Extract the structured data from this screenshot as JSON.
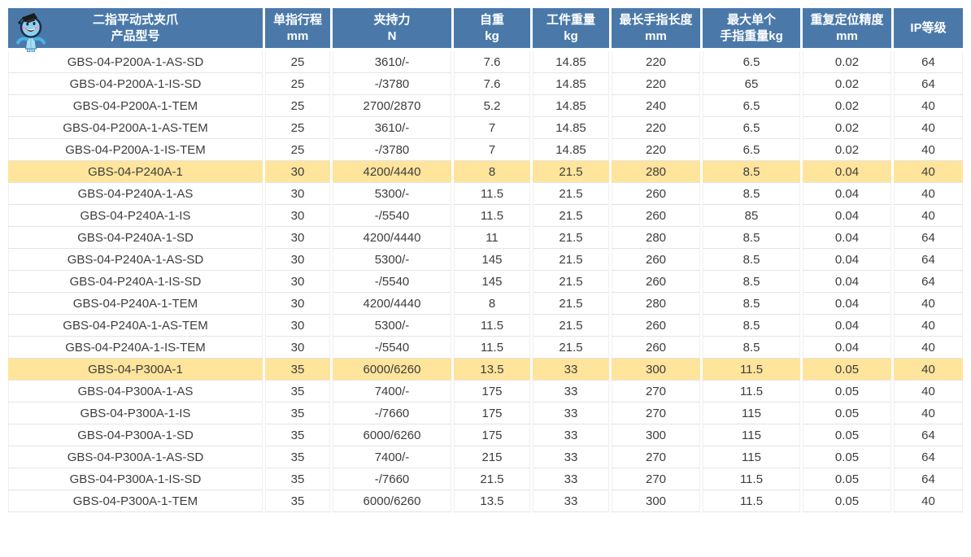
{
  "table": {
    "columns": [
      {
        "line1": "二指平动式夹爪",
        "line2": "产品型号"
      },
      {
        "line1": "单指行程",
        "line2": "mm"
      },
      {
        "line1": "夹持力",
        "line2": "N"
      },
      {
        "line1": "自重",
        "line2": "kg"
      },
      {
        "line1": "工件重量",
        "line2": "kg"
      },
      {
        "line1": "最长手指长度",
        "line2": "mm"
      },
      {
        "line1": "最大单个",
        "line2": "手指重量kg"
      },
      {
        "line1": "重复定位精度",
        "line2": "mm"
      },
      {
        "line1": "IP等级",
        "line2": ""
      }
    ],
    "rows": [
      {
        "highlighted": false,
        "cells": [
          "GBS-04-P200A-1-AS-SD",
          "25",
          "3610/-",
          "7.6",
          "14.85",
          "220",
          "6.5",
          "0.02",
          "64"
        ]
      },
      {
        "highlighted": false,
        "cells": [
          "GBS-04-P200A-1-IS-SD",
          "25",
          "-/3780",
          "7.6",
          "14.85",
          "220",
          "65",
          "0.02",
          "64"
        ]
      },
      {
        "highlighted": false,
        "cells": [
          "GBS-04-P200A-1-TEM",
          "25",
          "2700/2870",
          "5.2",
          "14.85",
          "240",
          "6.5",
          "0.02",
          "40"
        ]
      },
      {
        "highlighted": false,
        "cells": [
          "GBS-04-P200A-1-AS-TEM",
          "25",
          "3610/-",
          "7",
          "14.85",
          "220",
          "6.5",
          "0.02",
          "40"
        ]
      },
      {
        "highlighted": false,
        "cells": [
          "GBS-04-P200A-1-IS-TEM",
          "25",
          "-/3780",
          "7",
          "14.85",
          "220",
          "6.5",
          "0.02",
          "40"
        ]
      },
      {
        "highlighted": true,
        "cells": [
          "GBS-04-P240A-1",
          "30",
          "4200/4440",
          "8",
          "21.5",
          "280",
          "8.5",
          "0.04",
          "40"
        ]
      },
      {
        "highlighted": false,
        "cells": [
          "GBS-04-P240A-1-AS",
          "30",
          "5300/-",
          "11.5",
          "21.5",
          "260",
          "8.5",
          "0.04",
          "40"
        ]
      },
      {
        "highlighted": false,
        "cells": [
          "GBS-04-P240A-1-IS",
          "30",
          "-/5540",
          "11.5",
          "21.5",
          "260",
          "85",
          "0.04",
          "40"
        ]
      },
      {
        "highlighted": false,
        "cells": [
          "GBS-04-P240A-1-SD",
          "30",
          "4200/4440",
          "11",
          "21.5",
          "280",
          "8.5",
          "0.04",
          "64"
        ]
      },
      {
        "highlighted": false,
        "cells": [
          "GBS-04-P240A-1-AS-SD",
          "30",
          "5300/-",
          "145",
          "21.5",
          "260",
          "8.5",
          "0.04",
          "64"
        ]
      },
      {
        "highlighted": false,
        "cells": [
          "GBS-04-P240A-1-IS-SD",
          "30",
          "-/5540",
          "145",
          "21.5",
          "260",
          "8.5",
          "0.04",
          "64"
        ]
      },
      {
        "highlighted": false,
        "cells": [
          "GBS-04-P240A-1-TEM",
          "30",
          "4200/4440",
          "8",
          "21.5",
          "280",
          "8.5",
          "0.04",
          "40"
        ]
      },
      {
        "highlighted": false,
        "cells": [
          "GBS-04-P240A-1-AS-TEM",
          "30",
          "5300/-",
          "11.5",
          "21.5",
          "260",
          "8.5",
          "0.04",
          "40"
        ]
      },
      {
        "highlighted": false,
        "cells": [
          "GBS-04-P240A-1-IS-TEM",
          "30",
          "-/5540",
          "11.5",
          "21.5",
          "260",
          "8.5",
          "0.04",
          "40"
        ]
      },
      {
        "highlighted": true,
        "cells": [
          "GBS-04-P300A-1",
          "35",
          "6000/6260",
          "13.5",
          "33",
          "300",
          "11.5",
          "0.05",
          "40"
        ]
      },
      {
        "highlighted": false,
        "cells": [
          "GBS-04-P300A-1-AS",
          "35",
          "7400/-",
          "175",
          "33",
          "270",
          "11.5",
          "0.05",
          "40"
        ]
      },
      {
        "highlighted": false,
        "cells": [
          "GBS-04-P300A-1-IS",
          "35",
          "-/7660",
          "175",
          "33",
          "270",
          "115",
          "0.05",
          "40"
        ]
      },
      {
        "highlighted": false,
        "cells": [
          "GBS-04-P300A-1-SD",
          "35",
          "6000/6260",
          "175",
          "33",
          "300",
          "115",
          "0.05",
          "64"
        ]
      },
      {
        "highlighted": false,
        "cells": [
          "GBS-04-P300A-1-AS-SD",
          "35",
          "7400/-",
          "215",
          "33",
          "270",
          "115",
          "0.05",
          "64"
        ]
      },
      {
        "highlighted": false,
        "cells": [
          "GBS-04-P300A-1-IS-SD",
          "35",
          "-/7660",
          "21.5",
          "33",
          "270",
          "11.5",
          "0.05",
          "64"
        ]
      },
      {
        "highlighted": false,
        "cells": [
          "GBS-04-P300A-1-TEM",
          "35",
          "6000/6260",
          "13.5",
          "33",
          "300",
          "11.5",
          "0.05",
          "40"
        ]
      }
    ]
  },
  "icons": {
    "mascot": "mascot-graduate-robot-icon"
  },
  "colors": {
    "header_bg": "#4a79a9",
    "header_text": "#ffffff",
    "highlight_bg": "#ffe49c",
    "body_text": "#3d3d3d",
    "gridline": "#e4e4e4"
  }
}
